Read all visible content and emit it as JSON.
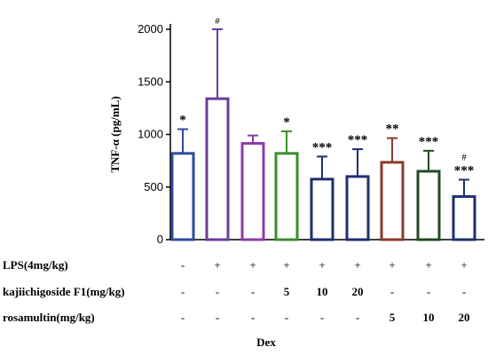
{
  "chart_data": {
    "type": "bar",
    "ylabel": "TNF-α (pg/mL)",
    "ylim": [
      0,
      2000
    ],
    "yticks": [
      "0",
      "500",
      "1000",
      "1500",
      "2000"
    ],
    "grid": false,
    "bars": [
      {
        "value": 820,
        "error": 230,
        "color": "#2f4b9a",
        "sig": "*",
        "hash": ""
      },
      {
        "value": 1340,
        "error": 660,
        "color": "#6a3d9a",
        "sig": "",
        "hash": "#"
      },
      {
        "value": 915,
        "error": 75,
        "color": "#8e3aa8",
        "sig": "",
        "hash": ""
      },
      {
        "value": 820,
        "error": 210,
        "color": "#3a8f2a",
        "sig": "*",
        "hash": ""
      },
      {
        "value": 575,
        "error": 215,
        "color": "#1f2f6e",
        "sig": "***",
        "hash": ""
      },
      {
        "value": 600,
        "error": 260,
        "color": "#1f2f6e",
        "sig": "***",
        "hash": ""
      },
      {
        "value": 735,
        "error": 230,
        "color": "#8a3a2a",
        "sig": "**",
        "hash": ""
      },
      {
        "value": 650,
        "error": 195,
        "color": "#234a22",
        "sig": "***",
        "hash": ""
      },
      {
        "value": 410,
        "error": 160,
        "color": "#1f2f6e",
        "sig": "***",
        "hash": "#"
      }
    ]
  },
  "table": {
    "rows": [
      {
        "label": "LPS(4mg/kg)",
        "cells": [
          "-",
          "+",
          "+",
          "+",
          "+",
          "+",
          "+",
          "+",
          "+"
        ]
      },
      {
        "label": "kajiichigoside F1(mg/kg)",
        "cells": [
          "-",
          "-",
          "-",
          "5",
          "10",
          "20",
          "-",
          "-",
          "-"
        ]
      },
      {
        "label": "rosamultin(mg/kg)",
        "cells": [
          "-",
          "-",
          "-",
          "-",
          "-",
          "-",
          "5",
          "10",
          "20"
        ]
      }
    ],
    "footer": "Dex"
  }
}
